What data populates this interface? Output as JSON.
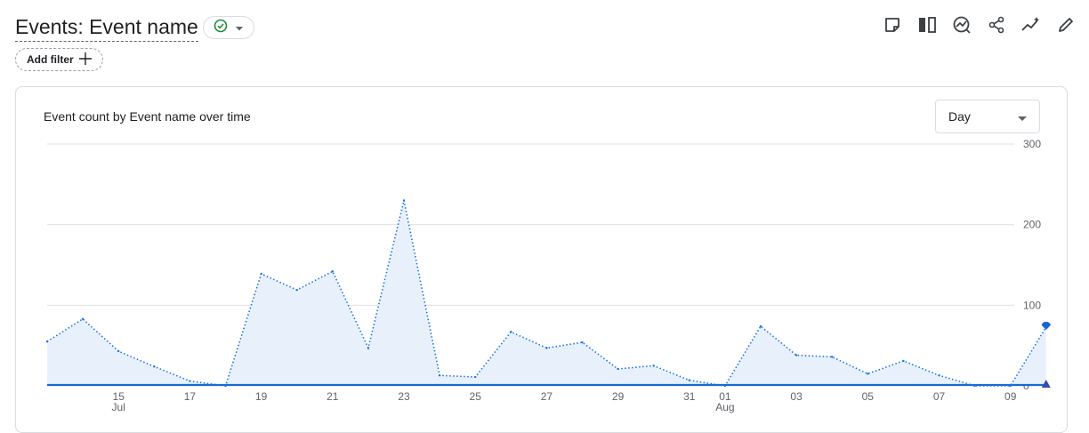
{
  "header": {
    "title": "Events: Event name",
    "add_filter_label": "Add filter"
  },
  "toolbar": {
    "icons": [
      "note-icon",
      "compare-icon",
      "insights-icon",
      "share-icon",
      "trend-icon",
      "edit-icon"
    ]
  },
  "card": {
    "title": "Event count by Event name over time",
    "granularity": "Day"
  },
  "colors": {
    "series": "#1a73e8",
    "main_line": "#1967d2",
    "fill": "#e8f1fb",
    "grid": "#e0e0e0",
    "check": "#1e8e3e"
  },
  "chart_data": {
    "type": "line",
    "x": [
      "Jul 13",
      "Jul 14",
      "Jul 15",
      "Jul 16",
      "Jul 17",
      "Jul 18",
      "Jul 19",
      "Jul 20",
      "Jul 21",
      "Jul 22",
      "Jul 23",
      "Jul 24",
      "Jul 25",
      "Jul 26",
      "Jul 27",
      "Jul 28",
      "Jul 29",
      "Jul 30",
      "Jul 31",
      "Aug 01",
      "Aug 02",
      "Aug 03",
      "Aug 04",
      "Aug 05",
      "Aug 06",
      "Aug 07",
      "Aug 08",
      "Aug 09",
      "Aug 10"
    ],
    "series": [
      {
        "values": [
          55,
          83,
          43,
          24,
          6,
          0,
          139,
          119,
          142,
          47,
          230,
          13,
          11,
          67,
          47,
          54,
          21,
          25,
          7,
          0,
          74,
          38,
          36,
          15,
          31,
          13,
          0,
          0,
          73
        ]
      }
    ],
    "ylim": [
      0,
      300
    ],
    "y_ticks": [
      0,
      100,
      200,
      300
    ],
    "x_tick_labels": [
      {
        "label": "15",
        "sub": "Jul",
        "index": 2
      },
      {
        "label": "17",
        "index": 4
      },
      {
        "label": "19",
        "index": 6
      },
      {
        "label": "21",
        "index": 8
      },
      {
        "label": "23",
        "index": 10
      },
      {
        "label": "25",
        "index": 12
      },
      {
        "label": "27",
        "index": 14
      },
      {
        "label": "29",
        "index": 16
      },
      {
        "label": "31",
        "index": 18
      },
      {
        "label": "01",
        "sub": "Aug",
        "index": 19
      },
      {
        "label": "03",
        "index": 21
      },
      {
        "label": "05",
        "index": 23
      },
      {
        "label": "07",
        "index": 25
      },
      {
        "label": "09",
        "index": 27
      }
    ],
    "grid": true
  }
}
